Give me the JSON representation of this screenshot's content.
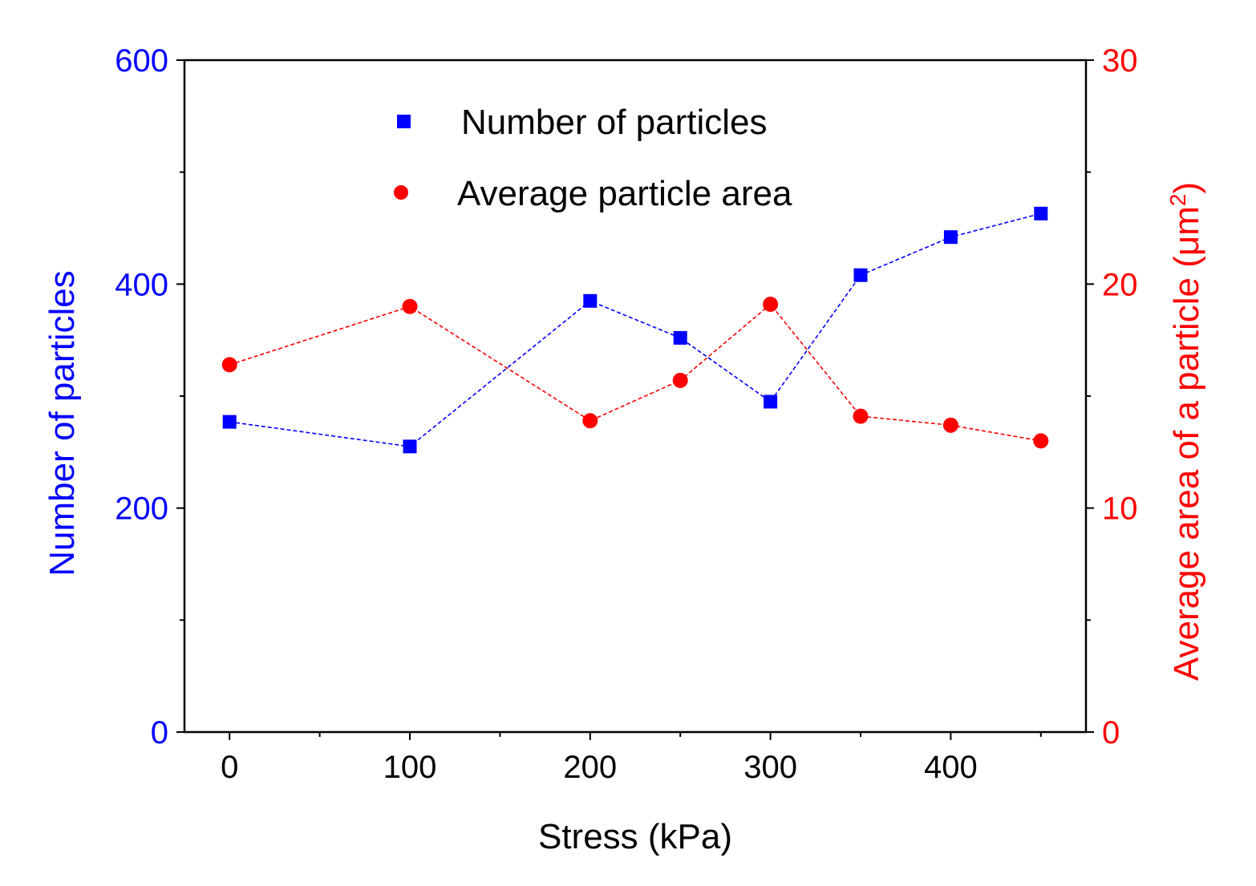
{
  "chart_data": {
    "type": "line",
    "x": [
      0,
      100,
      200,
      250,
      300,
      350,
      400,
      450
    ],
    "xlabel": "Stress (kPa)",
    "xlim": [
      -25,
      475
    ],
    "xticks": [
      0,
      100,
      200,
      300,
      400
    ],
    "x_tick_labels": [
      "0",
      "100",
      "200",
      "300",
      "400"
    ],
    "grid": false,
    "legend_position": "top-center",
    "series": [
      {
        "name": "Number of particles",
        "axis": "left",
        "marker": "square",
        "color": "#0000ff",
        "values": [
          277,
          255,
          385,
          352,
          295,
          408,
          442,
          463
        ]
      },
      {
        "name": "Average particle area",
        "axis": "right",
        "marker": "circle",
        "color": "#ff0000",
        "values": [
          16.4,
          19.0,
          13.9,
          15.7,
          19.1,
          14.1,
          13.7,
          13.0
        ]
      }
    ],
    "y_left": {
      "label": "Number of particles",
      "lim": [
        0,
        600
      ],
      "ticks": [
        0,
        200,
        400,
        600
      ],
      "tick_labels": [
        "0",
        "200",
        "400",
        "600"
      ],
      "minor_ticks": [
        100,
        300,
        500
      ],
      "color": "#0000ff"
    },
    "y_right": {
      "label_main": "Average area of a particle  (μm",
      "label_sup": "2",
      "label_close": ")",
      "lim": [
        0,
        30
      ],
      "ticks": [
        0,
        10,
        20,
        30
      ],
      "tick_labels": [
        "0",
        "10",
        "20",
        "30"
      ],
      "minor_ticks": [
        5,
        15,
        25
      ],
      "color": "#ff0000"
    }
  }
}
